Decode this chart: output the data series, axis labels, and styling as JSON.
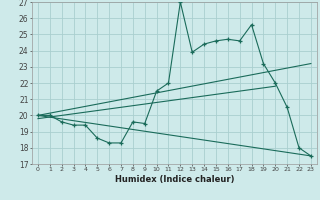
{
  "xlabel": "Humidex (Indice chaleur)",
  "bg_color": "#ceeaea",
  "grid_color": "#aacfcf",
  "line_color": "#1a6b5a",
  "xlim": [
    -0.5,
    23.5
  ],
  "ylim": [
    17,
    27
  ],
  "xticks": [
    0,
    1,
    2,
    3,
    4,
    5,
    6,
    7,
    8,
    9,
    10,
    11,
    12,
    13,
    14,
    15,
    16,
    17,
    18,
    19,
    20,
    21,
    22,
    23
  ],
  "yticks": [
    17,
    18,
    19,
    20,
    21,
    22,
    23,
    24,
    25,
    26,
    27
  ],
  "line1_x": [
    0,
    1,
    2,
    3,
    4,
    5,
    6,
    7,
    8,
    9,
    10,
    11,
    12,
    13,
    14,
    15,
    16,
    17,
    18,
    19,
    20,
    21,
    22,
    23
  ],
  "line1_y": [
    20.0,
    20.0,
    19.6,
    19.4,
    19.4,
    18.6,
    18.3,
    18.3,
    19.6,
    19.5,
    21.5,
    22.0,
    27.0,
    23.9,
    24.4,
    24.6,
    24.7,
    24.6,
    25.6,
    23.2,
    22.0,
    20.5,
    18.0,
    17.5
  ],
  "line2_x": [
    0,
    23
  ],
  "line2_y": [
    20.0,
    23.2
  ],
  "line3_x": [
    0,
    20
  ],
  "line3_y": [
    19.8,
    21.8
  ],
  "line4_x": [
    0,
    23
  ],
  "line4_y": [
    20.0,
    17.5
  ]
}
